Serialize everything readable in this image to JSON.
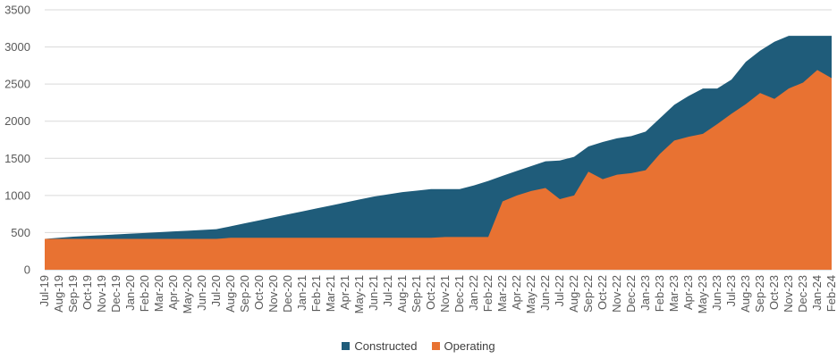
{
  "chart_data": {
    "type": "area",
    "title": "",
    "xlabel": "",
    "ylabel": "",
    "ylim": [
      0,
      3500
    ],
    "yticks": [
      0,
      500,
      1000,
      1500,
      2000,
      2500,
      3000,
      3500
    ],
    "grid": true,
    "legend_position": "bottom",
    "categories": [
      "Jul-19",
      "Aug-19",
      "Sep-19",
      "Oct-19",
      "Nov-19",
      "Dec-19",
      "Jan-20",
      "Feb-20",
      "Mar-20",
      "Apr-20",
      "May-20",
      "Jun-20",
      "Jul-20",
      "Aug-20",
      "Sep-20",
      "Oct-20",
      "Nov-20",
      "Dec-20",
      "Jan-21",
      "Feb-21",
      "Mar-21",
      "Apr-21",
      "May-21",
      "Jun-21",
      "Jul-21",
      "Aug-21",
      "Sep-21",
      "Oct-21",
      "Nov-21",
      "Dec-21",
      "Jan-22",
      "Feb-22",
      "Mar-22",
      "Apr-22",
      "May-22",
      "Jun-22",
      "Jul-22",
      "Aug-22",
      "Sep-22",
      "Oct-22",
      "Nov-22",
      "Dec-22",
      "Jan-23",
      "Feb-23",
      "Mar-23",
      "Apr-23",
      "May-23",
      "Jun-23",
      "Jul-23",
      "Aug-23",
      "Sep-23",
      "Oct-23",
      "Nov-23",
      "Dec-23",
      "Jan-24",
      "Feb-24"
    ],
    "series": [
      {
        "name": "Constructed",
        "color": "#1f5c7a",
        "values": [
          415,
          430,
          445,
          455,
          465,
          475,
          485,
          495,
          505,
          515,
          525,
          535,
          545,
          585,
          625,
          665,
          705,
          745,
          785,
          825,
          865,
          905,
          945,
          985,
          1015,
          1045,
          1065,
          1085,
          1085,
          1085,
          1135,
          1195,
          1265,
          1330,
          1395,
          1460,
          1470,
          1520,
          1660,
          1720,
          1770,
          1800,
          1860,
          2040,
          2220,
          2340,
          2440,
          2440,
          2560,
          2800,
          2950,
          3070,
          3150,
          3150,
          3150,
          3150
        ]
      },
      {
        "name": "Operating",
        "color": "#e87232",
        "values": [
          415,
          415,
          415,
          415,
          415,
          415,
          415,
          415,
          415,
          415,
          415,
          415,
          415,
          430,
          430,
          430,
          430,
          430,
          430,
          430,
          430,
          430,
          430,
          430,
          430,
          430,
          430,
          430,
          440,
          440,
          440,
          440,
          920,
          1000,
          1060,
          1100,
          950,
          1000,
          1320,
          1220,
          1280,
          1300,
          1340,
          1560,
          1740,
          1790,
          1830,
          1960,
          2100,
          2230,
          2380,
          2300,
          2440,
          2520,
          2690,
          2580
        ]
      }
    ]
  }
}
